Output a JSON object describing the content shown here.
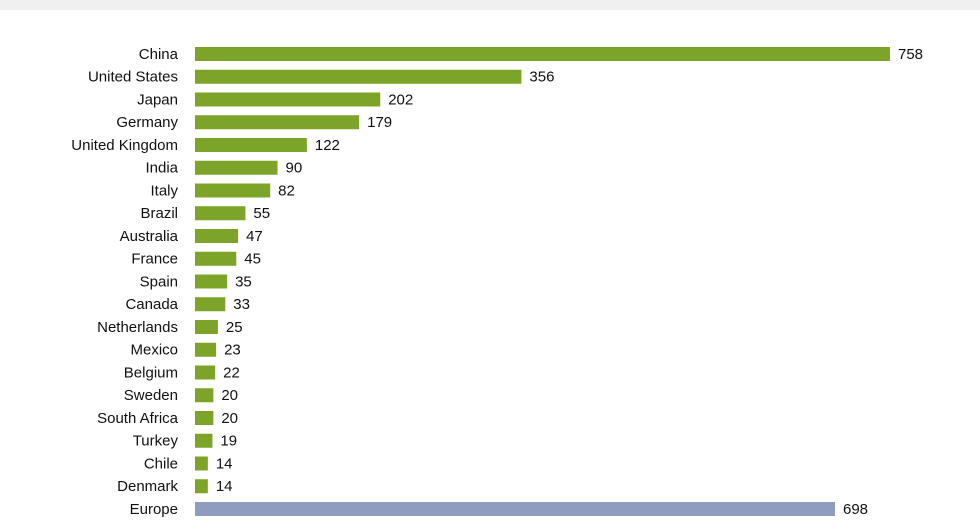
{
  "chart_data": {
    "type": "bar",
    "orientation": "horizontal",
    "categories": [
      "China",
      "United States",
      "Japan",
      "Germany",
      "United Kingdom",
      "India",
      "Italy",
      "Brazil",
      "Australia",
      "France",
      "Spain",
      "Canada",
      "Netherlands",
      "Mexico",
      "Belgium",
      "Sweden",
      "South Africa",
      "Turkey",
      "Chile",
      "Denmark",
      "Europe"
    ],
    "values": [
      758,
      356,
      202,
      179,
      122,
      90,
      82,
      55,
      47,
      45,
      35,
      33,
      25,
      23,
      22,
      20,
      20,
      19,
      14,
      14,
      698
    ],
    "colors": [
      "#7ba428",
      "#7ba428",
      "#7ba428",
      "#7ba428",
      "#7ba428",
      "#7ba428",
      "#7ba428",
      "#7ba428",
      "#7ba428",
      "#7ba428",
      "#7ba428",
      "#7ba428",
      "#7ba428",
      "#7ba428",
      "#7ba428",
      "#7ba428",
      "#7ba428",
      "#7ba428",
      "#7ba428",
      "#7ba428",
      "#8e9dbf"
    ],
    "grid": false
  }
}
